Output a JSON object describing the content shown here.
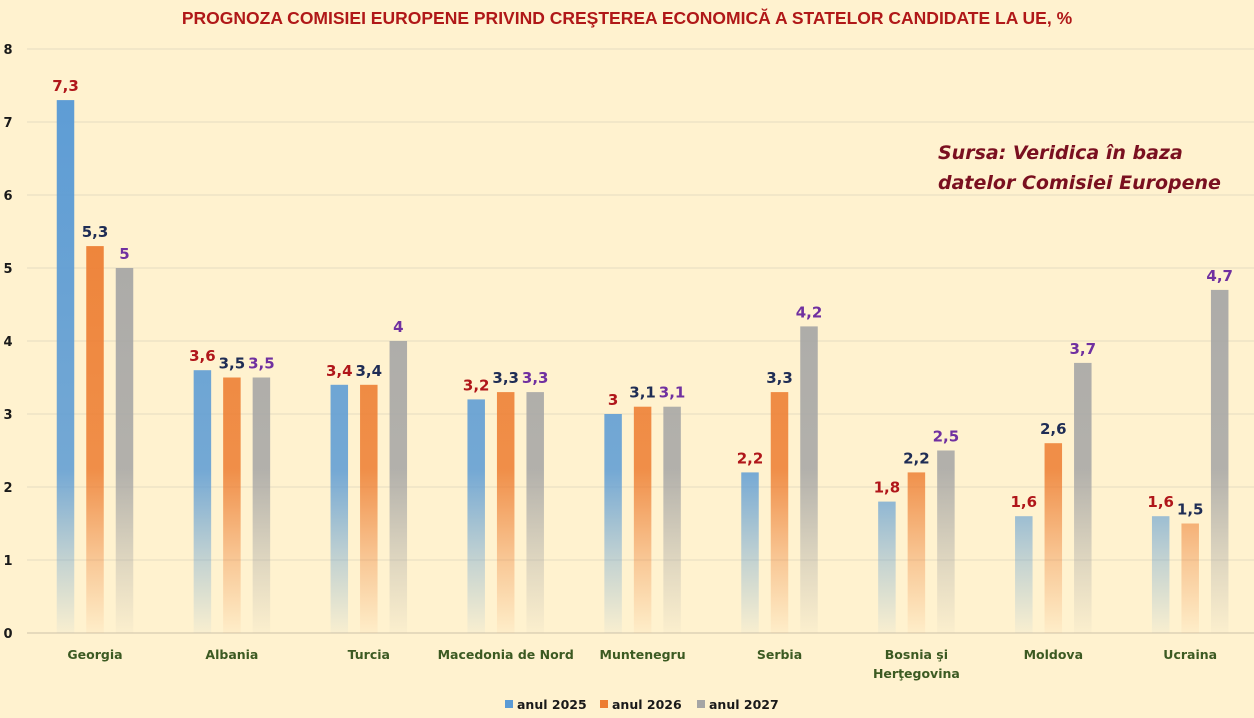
{
  "chart_data": {
    "type": "bar",
    "title": "PROGNOZA COMISIEI EUROPENE PRIVIND CREŞTEREA ECONOMICĂ A STATELOR CANDIDATE LA UE, %",
    "xlabel": "",
    "ylabel": "",
    "ylim": [
      0,
      8
    ],
    "yticks": [
      0,
      1,
      2,
      3,
      4,
      5,
      6,
      7,
      8
    ],
    "grid": true,
    "legend_position": "bottom",
    "categories": [
      [
        "Georgia"
      ],
      [
        "Albania"
      ],
      [
        "Turcia"
      ],
      [
        "Macedonia de Nord"
      ],
      [
        "Muntenegru"
      ],
      [
        "Serbia"
      ],
      [
        "Bosnia şi",
        "Herţegovina"
      ],
      [
        "Moldova"
      ],
      [
        "Ucraina"
      ]
    ],
    "series": [
      {
        "name": "anul 2025",
        "color": "#5b9bd5",
        "label_color": "#b0161a",
        "values": [
          7.3,
          3.6,
          3.4,
          3.2,
          3.0,
          2.2,
          1.8,
          1.6,
          1.6
        ],
        "labels": [
          "7,3",
          "3,6",
          "3,4",
          "3,2",
          "3",
          "2,2",
          "1,8",
          "1,6",
          "1,6"
        ]
      },
      {
        "name": "anul 2026",
        "color": "#ed7d31",
        "label_color": "#1f2d55",
        "values": [
          5.3,
          3.5,
          3.4,
          3.3,
          3.1,
          3.3,
          2.2,
          2.6,
          1.5
        ],
        "labels": [
          "5,3",
          "3,5",
          "3,4",
          "3,3",
          "3,1",
          "3,3",
          "2,2",
          "2,6",
          "1,5"
        ]
      },
      {
        "name": "anul 2027",
        "color": "#a5a5a5",
        "label_color": "#7030a0",
        "values": [
          5.0,
          3.5,
          4.0,
          3.3,
          3.1,
          4.2,
          2.5,
          3.7,
          4.7
        ],
        "labels": [
          "5",
          "3,5",
          "4",
          "3,3",
          "3,1",
          "4,2",
          "2,5",
          "3,7",
          "4,7"
        ]
      }
    ],
    "annotations": [
      {
        "text_lines": [
          "Sursa: Veridica în baza",
          "datelor Comisiei Europene"
        ],
        "placement": "top-right"
      }
    ]
  }
}
